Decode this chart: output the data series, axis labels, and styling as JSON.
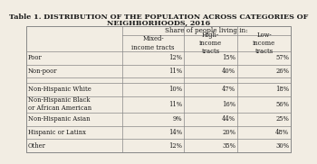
{
  "title_line1": "Table 1. DISTRIBUTION OF THE POPULATION ACROSS CATEGORIES OF",
  "title_line2": "NEIGHBORHOODS, 2016",
  "header_span": "Share of people living in:",
  "col_headers": [
    "Mixed-\nincome tracts",
    "High-\nincome\ntracts",
    "Low-\nincome\ntracts"
  ],
  "row_groups": [
    [
      {
        "label": "Poor",
        "values": [
          "12%",
          "15%",
          "57%"
        ]
      },
      {
        "label": "Non-poor",
        "values": [
          "11%",
          "40%",
          "26%"
        ]
      }
    ],
    [
      {
        "label": "Non-Hispanic White",
        "values": [
          "10%",
          "47%",
          "18%"
        ]
      },
      {
        "label": "Non-Hispanic Black\nor African American",
        "values": [
          "11%",
          "16%",
          "56%"
        ]
      },
      {
        "label": "Non-Hispanic Asian",
        "values": [
          "9%",
          "44%",
          "25%"
        ]
      },
      {
        "label": "Hispanic or Latinx",
        "values": [
          "14%",
          "20%",
          "48%"
        ]
      },
      {
        "label": "Other",
        "values": [
          "12%",
          "35%",
          "30%"
        ]
      }
    ]
  ],
  "bg_color": "#f2ede3",
  "line_color": "#888888",
  "text_color": "#1a1a1a",
  "title_fontsize": 5.8,
  "table_fontsize": 5.2
}
